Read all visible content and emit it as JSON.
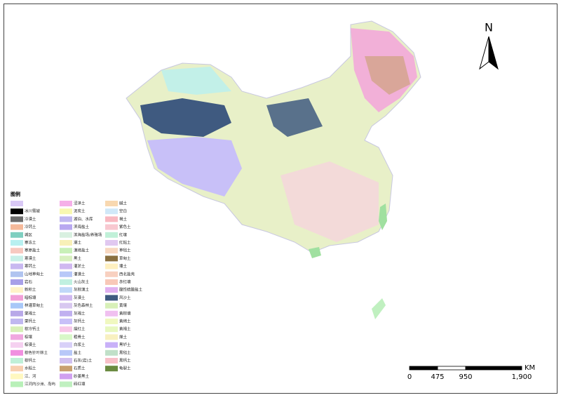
{
  "map": {
    "north": "N",
    "scale": {
      "unit": "KM",
      "ticks": [
        {
          "value": 0,
          "label": "0"
        },
        {
          "value": 475,
          "label": "475"
        },
        {
          "value": 950,
          "label": "950"
        },
        {
          "value": 1900,
          "label": "1,900"
        }
      ]
    },
    "legend": {
      "title": "图例",
      "columns": [
        [
          {
            "color": "#d9c8f5"
          },
          {
            "label": "冰川雪被",
            "color": "#000000"
          },
          {
            "label": "冷漠土",
            "color": "#6b6b6b"
          },
          {
            "label": "冷钙土",
            "color": "#f5b99a"
          },
          {
            "label": "城区",
            "color": "#7fcfc0"
          },
          {
            "label": "寒冻土",
            "color": "#b8f0f0"
          },
          {
            "label": "寒原盐土",
            "color": "#f7c9c0"
          },
          {
            "label": "寒漠土",
            "color": "#c8f0e8"
          },
          {
            "label": "寒钙土",
            "color": "#c8b8f0"
          },
          {
            "label": "山地草甸土",
            "color": "#b0c4f0"
          },
          {
            "label": "岩石",
            "color": "#a8a0e8"
          },
          {
            "label": "新积土",
            "color": "#fff3c8"
          },
          {
            "label": "暗棕壤",
            "color": "#f2a0d8"
          },
          {
            "label": "林灌草甸土",
            "color": "#a8c8f8"
          },
          {
            "label": "栗褐土",
            "color": "#b8a8e8"
          },
          {
            "label": "栗钙土",
            "color": "#c0b8f0"
          },
          {
            "label": "棕冷钙土",
            "color": "#d8f0b8"
          },
          {
            "label": "棕壤",
            "color": "#f0a8e0"
          },
          {
            "label": "棕漠土",
            "color": "#f5d0f0"
          },
          {
            "label": "棕色针叶林土",
            "color": "#f090e0"
          },
          {
            "label": "棕钙土",
            "color": "#c0f0d8"
          },
          {
            "label": "水稻土",
            "color": "#f8d0b0"
          },
          {
            "label": "江、河",
            "color": "#fff8c0"
          },
          {
            "label": "江河内沙洲、岛屿",
            "color": "#b8f0b8"
          }
        ],
        [
          {
            "label": "沼泽土",
            "color": "#f5b0e8"
          },
          {
            "label": "泥炭土",
            "color": "#f8f8b0"
          },
          {
            "label": "湖泊、水库",
            "color": "#c0b8f0"
          },
          {
            "label": "滨海盐土",
            "color": "#b8a8f0"
          },
          {
            "label": "滨海盐场/养殖场",
            "color": "#d8f0e0"
          },
          {
            "label": "潮土",
            "color": "#f8f0b8"
          },
          {
            "label": "漠境盐土",
            "color": "#c8f0b8"
          },
          {
            "label": "黑土",
            "color": "#d8f0c0"
          },
          {
            "label": "灌淤土",
            "color": "#d0b8f0"
          },
          {
            "label": "灌漠土",
            "color": "#b8c8f8"
          },
          {
            "label": "火山灰土",
            "color": "#c0f0e0"
          },
          {
            "label": "灰棕漠土",
            "color": "#c0d8f8"
          },
          {
            "label": "灰漠土",
            "color": "#d0b8f0"
          },
          {
            "label": "灰色森林土",
            "color": "#d8c8f0"
          },
          {
            "label": "灰褐土",
            "color": "#c0b0f0"
          },
          {
            "label": "灰钙土",
            "color": "#c8c0f8"
          },
          {
            "label": "燥红土",
            "color": "#f8c8e8"
          },
          {
            "label": "粗骨土",
            "color": "#d8f8c8"
          },
          {
            "label": "白浆土",
            "color": "#d8d0f8"
          },
          {
            "label": "盐土",
            "color": "#b8c8f8"
          },
          {
            "label": "石灰(岩)土",
            "color": "#d0c0f0"
          },
          {
            "label": "石质土",
            "color": "#c8a070"
          },
          {
            "label": "砂姜黑土",
            "color": "#d0a0f0"
          },
          {
            "label": "砖红壤",
            "color": "#c0f0c0"
          }
        ],
        [
          {
            "label": "碱土",
            "color": "#f8d8b0"
          },
          {
            "label": "空白",
            "color": "#d0e8f8"
          },
          {
            "label": "褐土",
            "color": "#f8b8c0"
          },
          {
            "label": "紫色土",
            "color": "#f8c8d0"
          },
          {
            "label": "红壤",
            "color": "#c0f0d8"
          },
          {
            "label": "红粘土",
            "color": "#e0c8f0"
          },
          {
            "label": "草毡土",
            "color": "#f8d8c0"
          },
          {
            "label": "草甸土",
            "color": "#8a7040"
          },
          {
            "label": "塿土",
            "color": "#fff0c0"
          },
          {
            "label": "西北盐壳",
            "color": "#f8d0c0"
          },
          {
            "label": "赤红壤",
            "color": "#f8c8b8"
          },
          {
            "label": "酸性硫酸盐土",
            "color": "#e0b0f0"
          },
          {
            "label": "风沙土",
            "color": "#3f5a80"
          },
          {
            "label": "黄壤",
            "color": "#d8f0b8"
          },
          {
            "label": "黄棕壤",
            "color": "#f0c0f0"
          },
          {
            "label": "黄绵土",
            "color": "#f0f8c0"
          },
          {
            "label": "黄褐土",
            "color": "#e8f8c0"
          },
          {
            "label": "燥土",
            "color": "#f8f0c0"
          },
          {
            "label": "黑垆土",
            "color": "#c8b0f8"
          },
          {
            "label": "黑毡土",
            "color": "#c0e0c8"
          },
          {
            "label": "黑钙土",
            "color": "#f8c0c8"
          },
          {
            "label": "龟裂土",
            "color": "#6a8a40"
          }
        ]
      ]
    }
  }
}
